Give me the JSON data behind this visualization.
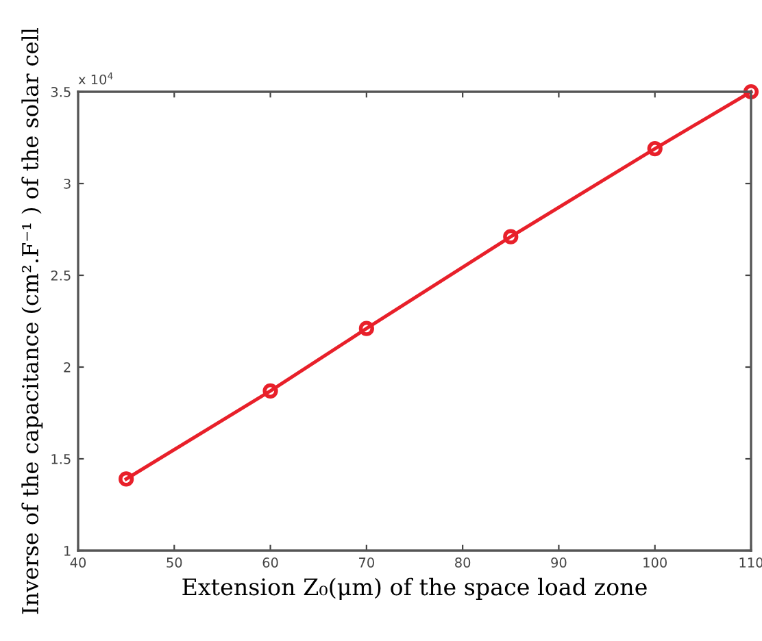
{
  "chart_data": {
    "type": "line",
    "xlabel": "Extension Z₀(μm) of the space load zone",
    "ylabel": "Inverse of the capacitance (cm².F⁻¹ ) of the solar cell",
    "annotations": [
      "x 10$^{4}$"
    ],
    "x": [
      45,
      60,
      70,
      85,
      100,
      110
    ],
    "series": [
      {
        "color": "#e8202a",
        "values": [
          1.39,
          1.87,
          2.21,
          2.71,
          3.19,
          3.5
        ]
      }
    ],
    "xlim": [
      40,
      110
    ],
    "xticks": [
      40,
      50,
      60,
      70,
      80,
      90,
      100,
      110
    ],
    "ylim": [
      1,
      3.5
    ],
    "yticks": [
      1,
      1.5,
      2,
      2.5,
      3,
      3.5
    ],
    "grid": false,
    "legend": false,
    "marker": "circle",
    "line_style": "solid"
  }
}
